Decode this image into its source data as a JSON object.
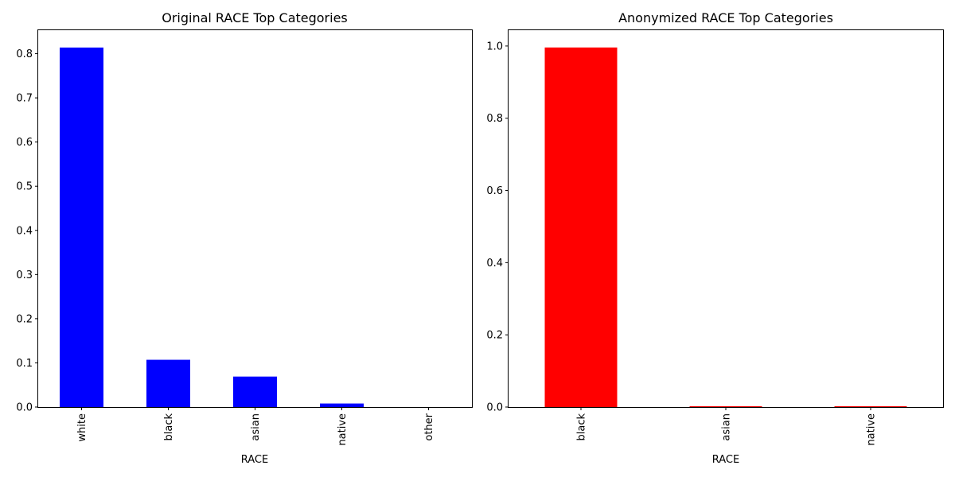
{
  "chart_data": [
    {
      "type": "bar",
      "title": "Original RACE Top Categories",
      "xlabel": "RACE",
      "ylabel": "",
      "categories": [
        "white",
        "black",
        "asian",
        "native",
        "other"
      ],
      "values": [
        0.814,
        0.107,
        0.069,
        0.008,
        0.0
      ],
      "ylim": [
        0,
        0.855
      ],
      "yticks": [
        0.0,
        0.1,
        0.2,
        0.3,
        0.4,
        0.5,
        0.6,
        0.7,
        0.8
      ],
      "ytick_labels": [
        "0.0",
        "0.1",
        "0.2",
        "0.3",
        "0.4",
        "0.5",
        "0.6",
        "0.7",
        "0.8"
      ],
      "color": "#0000ff",
      "grid": false,
      "legend": "none"
    },
    {
      "type": "bar",
      "title": "Anonymized RACE Top Categories",
      "xlabel": "RACE",
      "ylabel": "",
      "categories": [
        "black",
        "asian",
        "native"
      ],
      "values": [
        0.996,
        0.002,
        0.002
      ],
      "ylim": [
        0,
        1.046
      ],
      "yticks": [
        0.0,
        0.2,
        0.4,
        0.6,
        0.8,
        1.0
      ],
      "ytick_labels": [
        "0.0",
        "0.2",
        "0.4",
        "0.6",
        "0.8",
        "1.0"
      ],
      "color": "#ff0000",
      "grid": false,
      "legend": "none"
    }
  ]
}
